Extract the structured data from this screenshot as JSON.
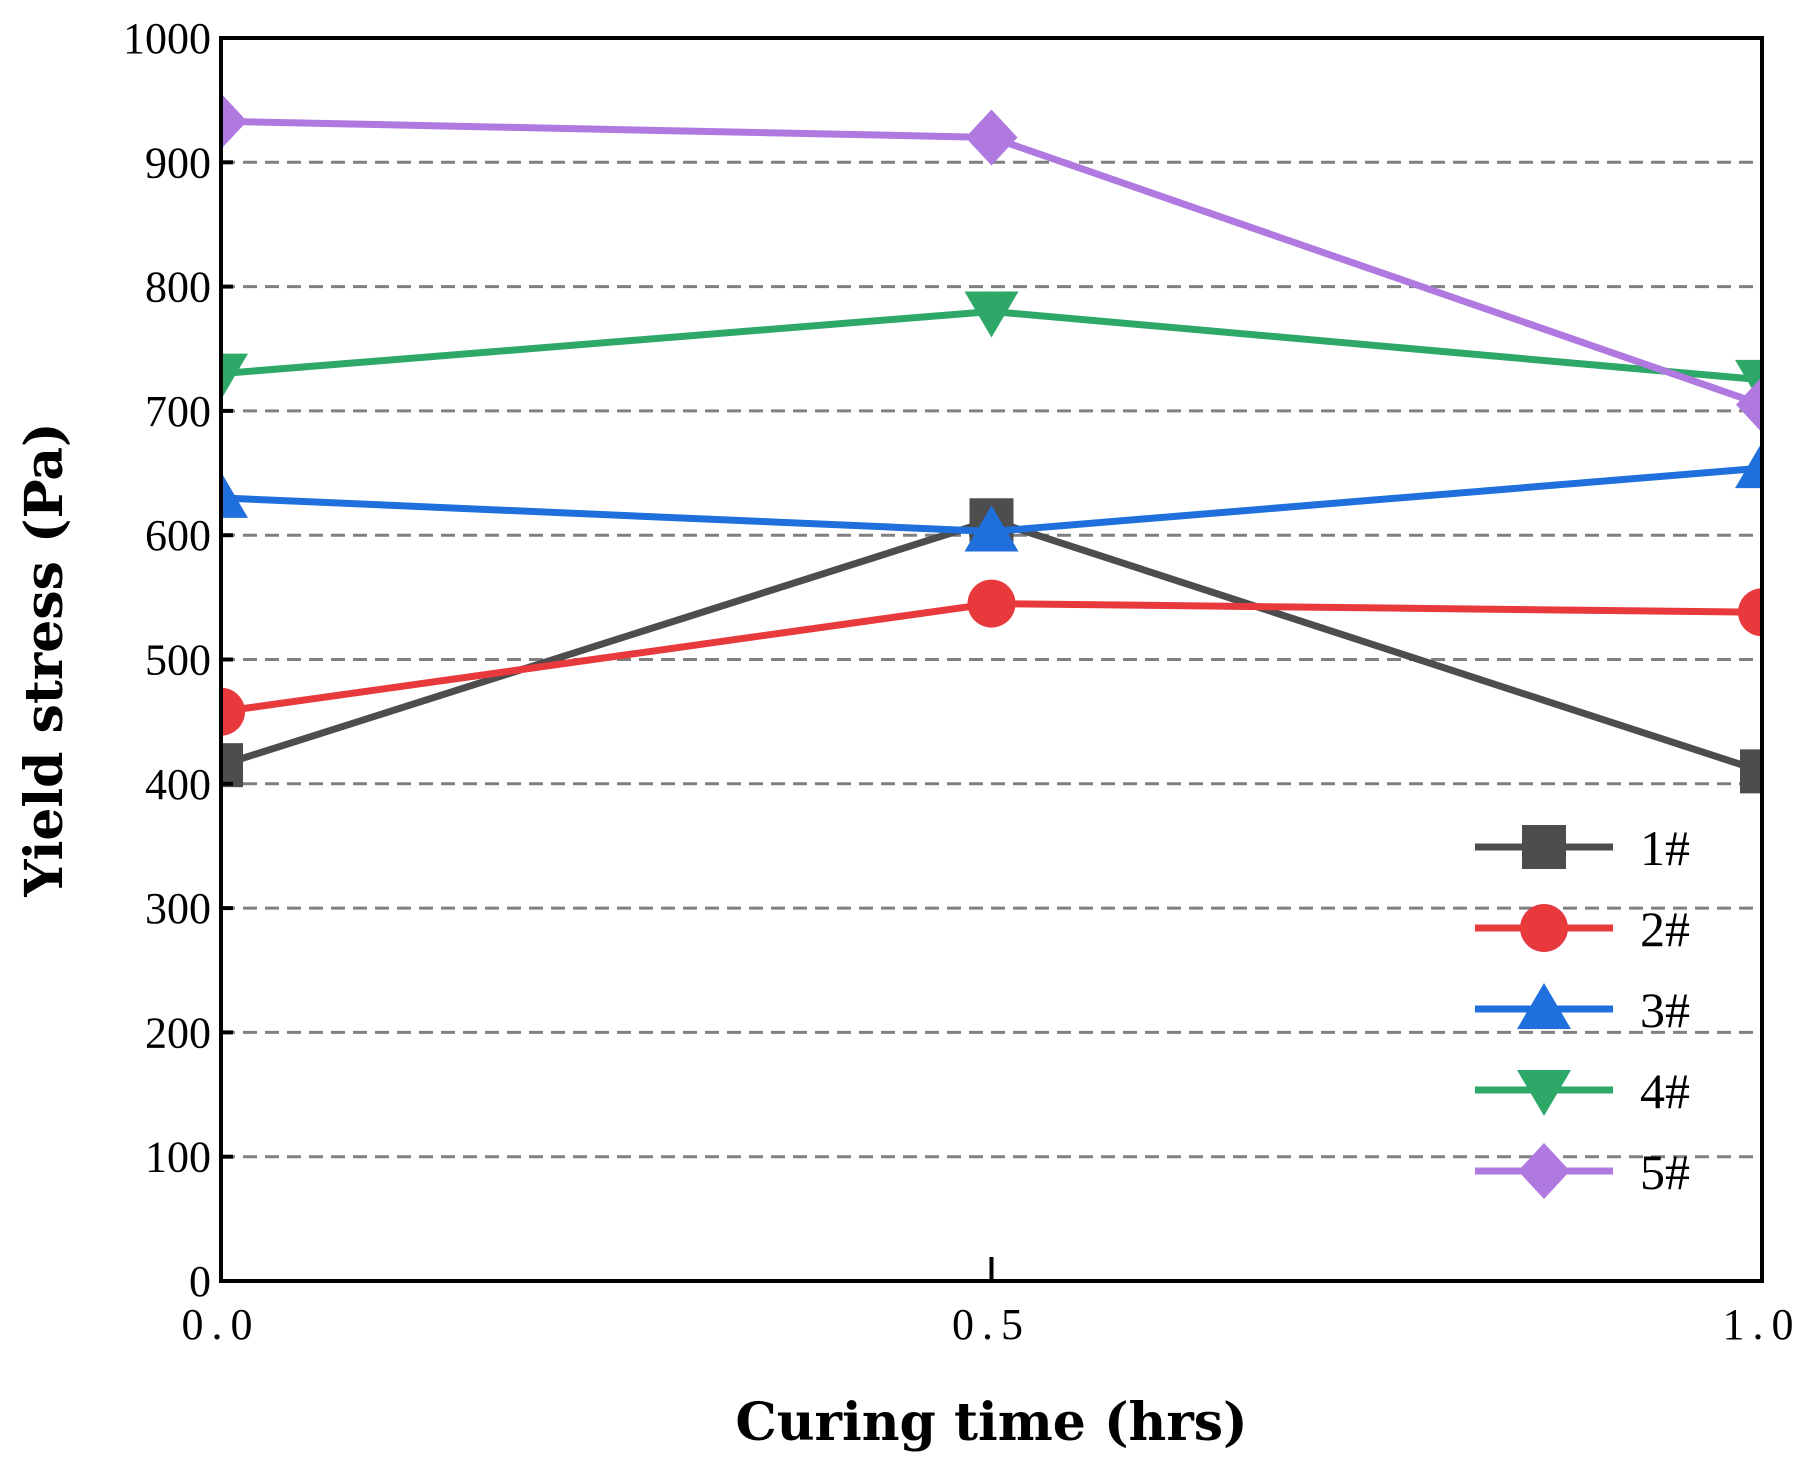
{
  "chart_data": {
    "type": "line",
    "title": "",
    "xlabel": "Curing time (hrs)",
    "ylabel": "Yield stress (Pa)",
    "x": [
      0.0,
      0.5,
      1.0
    ],
    "xlim": [
      0.0,
      1.0
    ],
    "ylim": [
      0,
      1000
    ],
    "x_ticks": [
      "0.0",
      "0.5",
      "1.0"
    ],
    "y_ticks": [
      "0",
      "100",
      "200",
      "300",
      "400",
      "500",
      "600",
      "700",
      "800",
      "900",
      "1000"
    ],
    "grid": "horizontal dashed",
    "legend_position": "lower-right",
    "series": [
      {
        "name": "1#",
        "values": [
          415,
          612,
          410
        ],
        "color": "#4d4d4d",
        "marker": "square"
      },
      {
        "name": "2#",
        "values": [
          458,
          545,
          538
        ],
        "color": "#e8393d",
        "marker": "circle"
      },
      {
        "name": "3#",
        "values": [
          630,
          603,
          654
        ],
        "color": "#1f6fdc",
        "marker": "triangle-up"
      },
      {
        "name": "4#",
        "values": [
          730,
          780,
          725
        ],
        "color": "#2ea868",
        "marker": "triangle-down"
      },
      {
        "name": "5#",
        "values": [
          933,
          920,
          705
        ],
        "color": "#b079e0",
        "marker": "diamond"
      }
    ]
  }
}
